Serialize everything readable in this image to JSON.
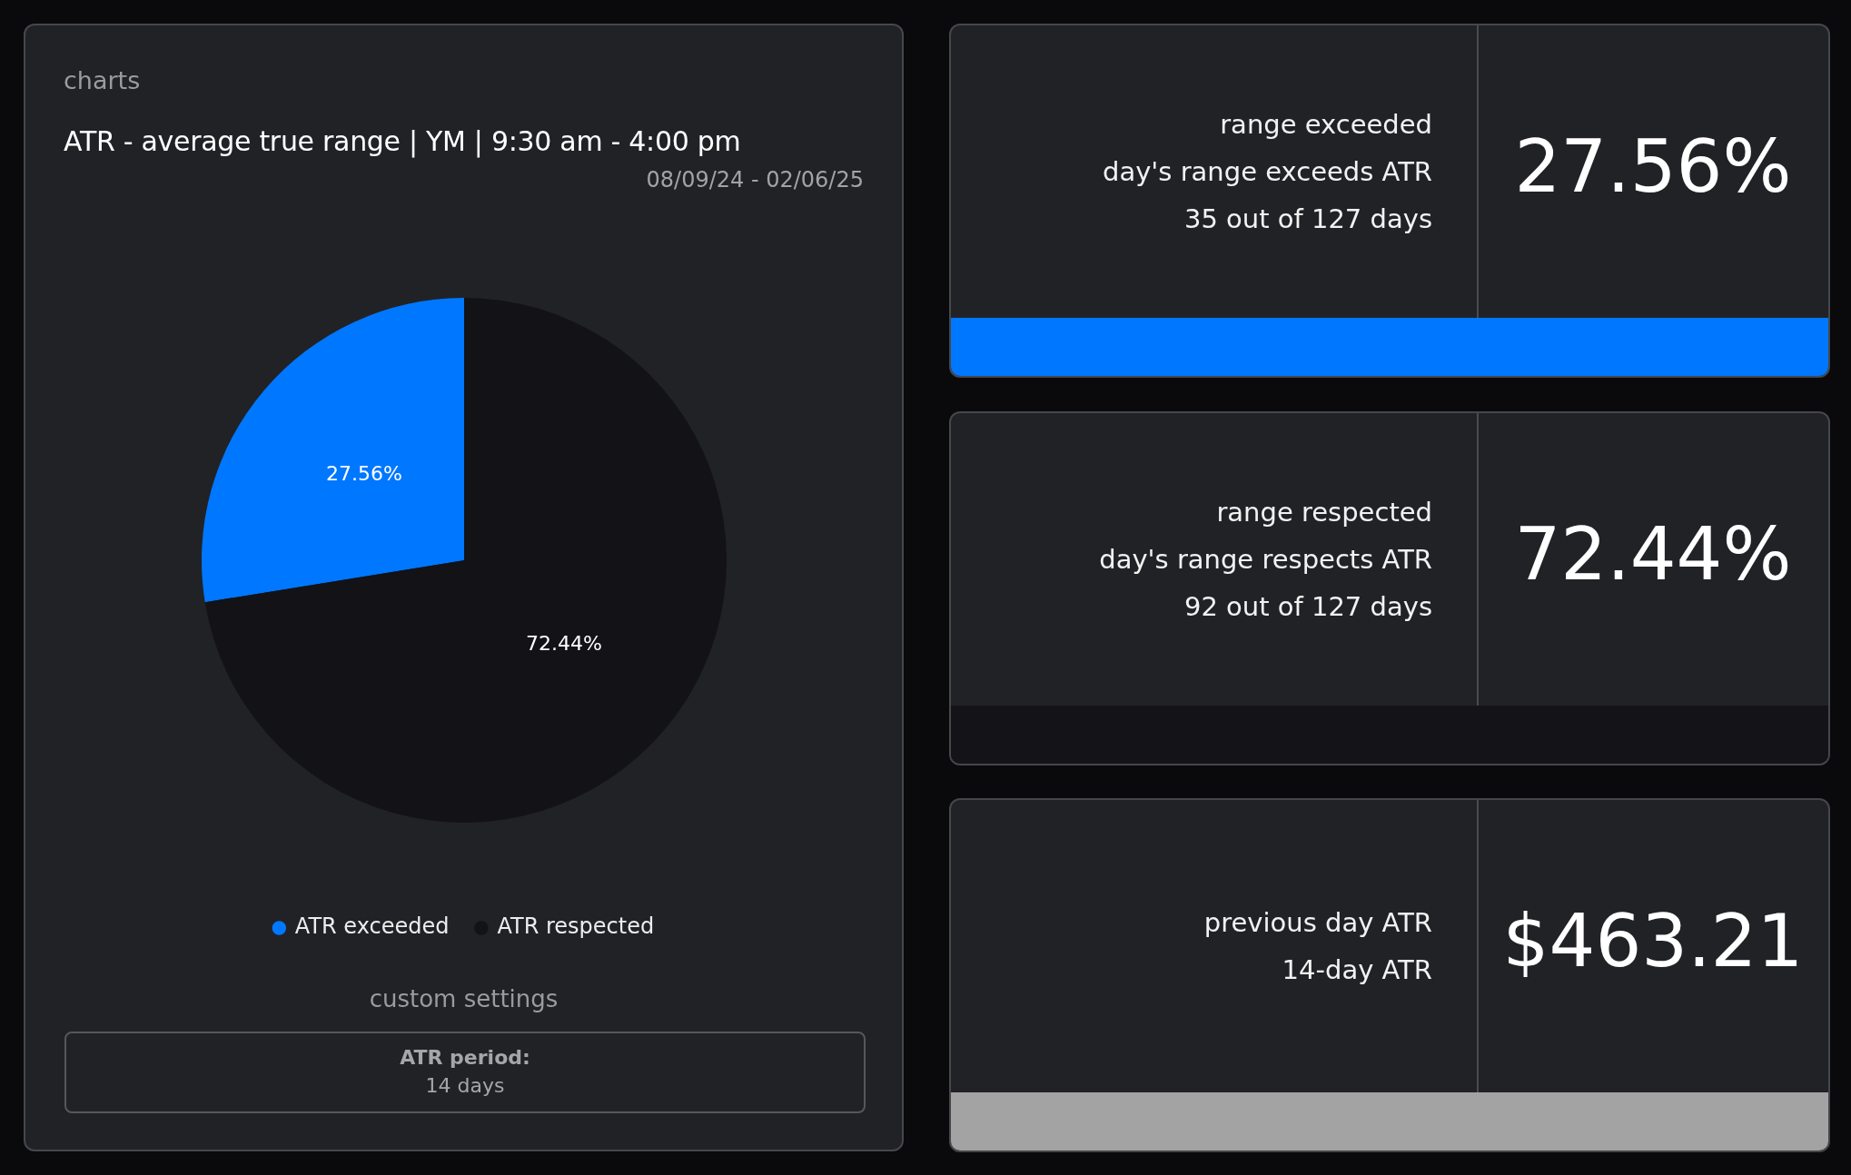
{
  "chart_data": [
    {
      "type": "pie",
      "title": "ATR - average true range | YM | 9:30 am - 4:00 pm",
      "subtitle": "08/09/24 - 02/06/25",
      "categories": [
        "ATR exceeded",
        "ATR respected"
      ],
      "values": [
        27.56,
        72.44
      ],
      "colors": [
        "#0077ff",
        "#121217"
      ],
      "value_labels": [
        "27.56%",
        "72.44%"
      ],
      "legend": "bottom",
      "annotations": [
        "charts",
        "custom settings",
        "ATR period:",
        "14 days"
      ]
    },
    {
      "type": "other",
      "title": "range exceeded",
      "subtitle": "day's range exceeds ATR",
      "annotations": [
        "35 out of 127 days",
        "27.56%"
      ],
      "color": "#0077ff"
    },
    {
      "type": "other",
      "title": "range respected",
      "subtitle": "day's range respects ATR",
      "annotations": [
        "92 out of 127 days",
        "72.44%"
      ],
      "color": "#141418"
    },
    {
      "type": "other",
      "title": "previous day ATR",
      "subtitle": "14-day ATR",
      "annotations": [
        "$463.21"
      ],
      "color": "#a3a3a3"
    }
  ]
}
